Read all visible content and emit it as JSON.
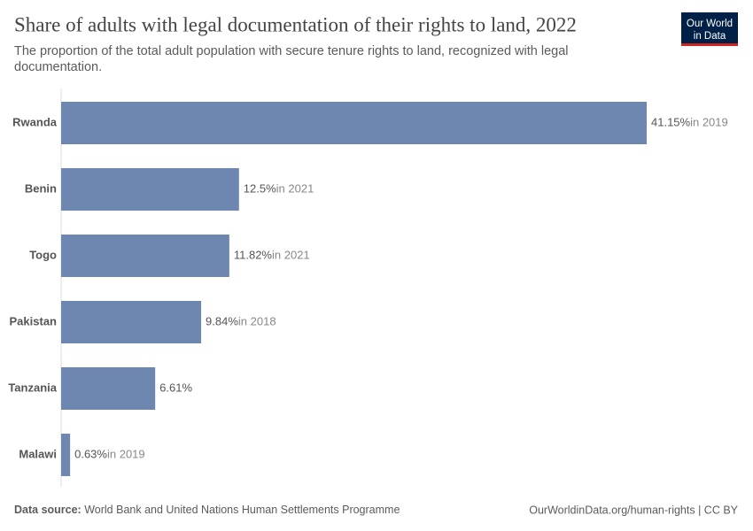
{
  "chart_data": {
    "type": "bar",
    "orientation": "horizontal",
    "title": "Share of adults with legal documentation of their rights to land, 2022",
    "subtitle": [
      "The proportion of the total adult population with secure tenure rights to land, recognized with legal",
      "documentation."
    ],
    "categories": [
      "Rwanda",
      "Benin",
      "Togo",
      "Pakistan",
      "Tanzania",
      "Malawi"
    ],
    "values": [
      41.15,
      12.5,
      11.82,
      9.84,
      6.61,
      0.63
    ],
    "value_labels": [
      "41.15%",
      "12.5%",
      "11.82%",
      "9.84%",
      "6.61%",
      "0.63%"
    ],
    "notes": [
      "in 2019",
      "in 2021",
      "in 2021",
      "in 2018",
      null,
      "in 2019"
    ],
    "color": "#6d87b0",
    "logo": [
      "Our World",
      "in Data"
    ],
    "source_label": "Data source:",
    "source": "World Bank and United Nations Human Settlements Programme",
    "url": "OurWorldinData.org/human-rights | CC BY"
  }
}
